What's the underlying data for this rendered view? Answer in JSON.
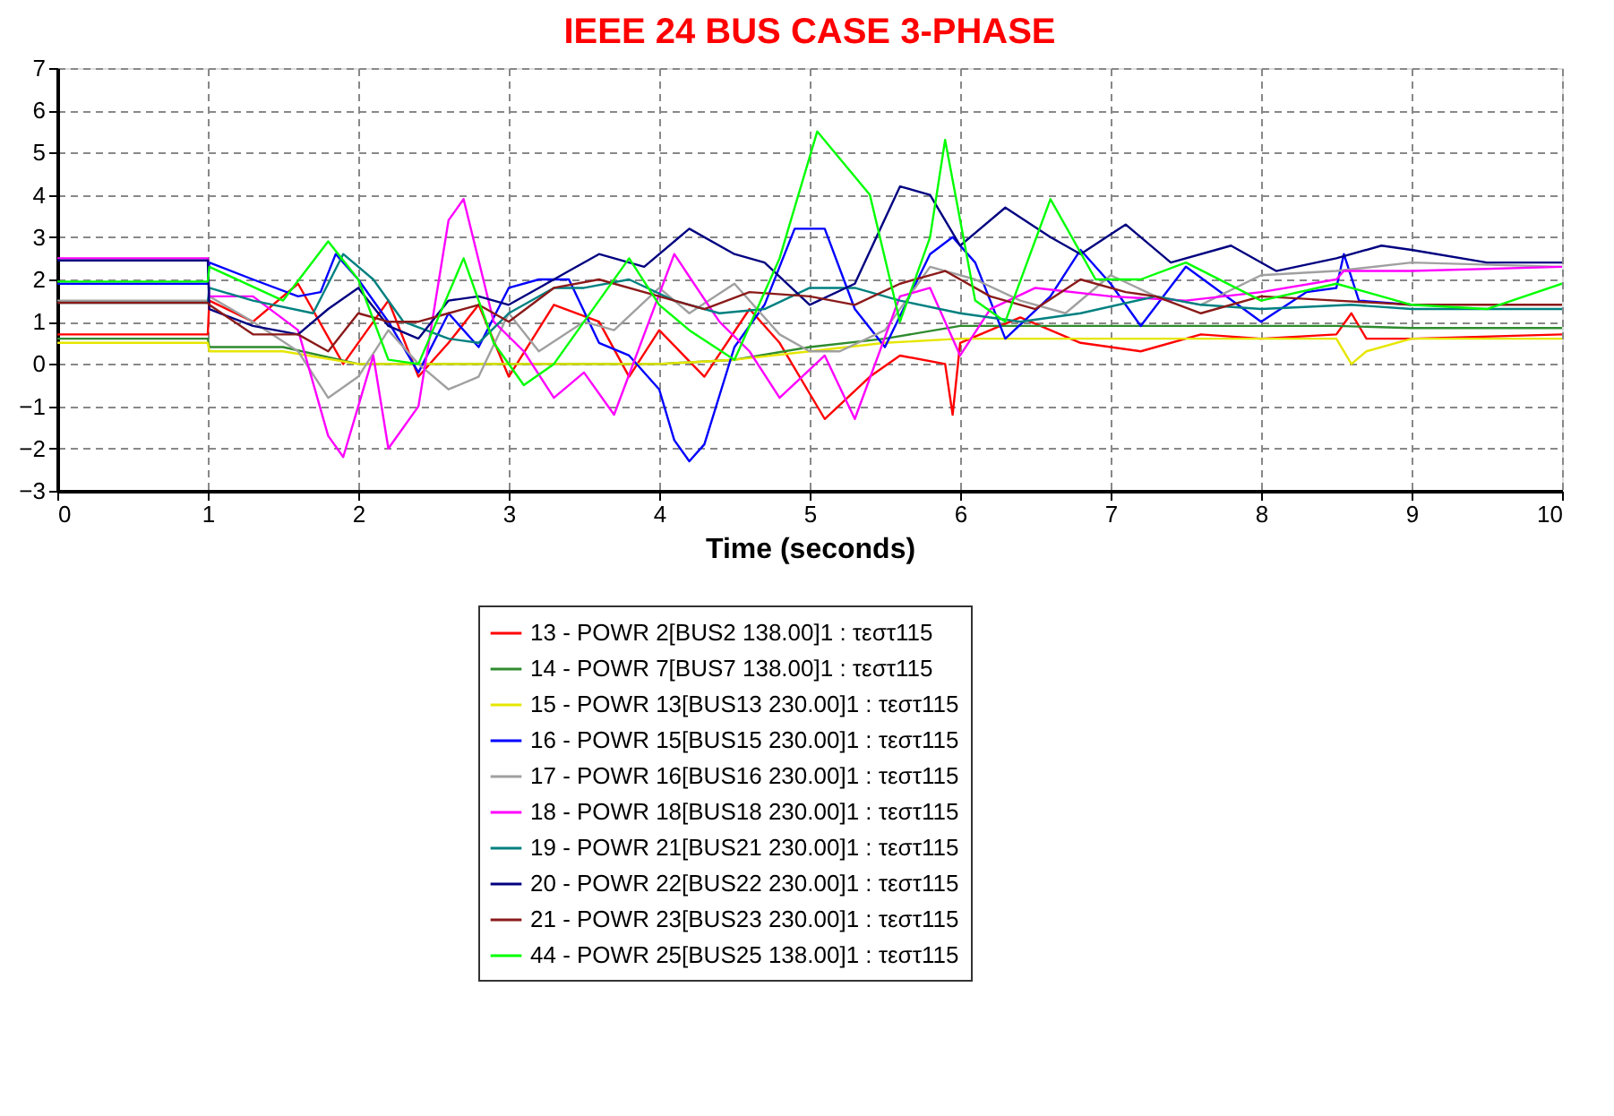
{
  "chart_data": {
    "type": "line",
    "title": "IEEE 24 BUS CASE 3-PHASE",
    "xlabel": "Time (seconds)",
    "xlim": [
      0,
      10
    ],
    "xticks": [
      0,
      1,
      2,
      3,
      4,
      5,
      6,
      7,
      8,
      9,
      10
    ],
    "ylim": [
      -3,
      7
    ],
    "yticks": [
      -3,
      -2,
      -1,
      0,
      1,
      2,
      3,
      4,
      5,
      6,
      7
    ],
    "grid": true,
    "legend": "bottom",
    "line_style": "solid",
    "marker": "none",
    "series": [
      {
        "name": "13 - POWR 2[BUS2 138.00]1 : τεστ115",
        "color": "#ff0000",
        "x": [
          0,
          1,
          1.01,
          1.3,
          1.6,
          1.9,
          2.2,
          2.4,
          2.6,
          2.8,
          3.0,
          3.3,
          3.6,
          3.8,
          4.0,
          4.3,
          4.6,
          4.8,
          5.1,
          5.4,
          5.6,
          5.9,
          5.95,
          6.0,
          6.4,
          6.8,
          7.2,
          7.6,
          8.0,
          8.5,
          8.6,
          8.7,
          9.0,
          10
        ],
        "values": [
          0.7,
          0.7,
          1.5,
          1.0,
          1.9,
          0.0,
          1.5,
          -0.3,
          0.5,
          1.4,
          -0.3,
          1.4,
          1.0,
          -0.3,
          0.8,
          -0.3,
          1.3,
          0.5,
          -1.3,
          -0.3,
          0.2,
          0.0,
          -1.2,
          0.5,
          1.1,
          0.5,
          0.3,
          0.7,
          0.6,
          0.7,
          1.2,
          0.6,
          0.6,
          0.7
        ]
      },
      {
        "name": "14 - POWR 7[BUS7 138.00]1 : τεστ115",
        "color": "#2e8b2e",
        "x": [
          0,
          1,
          1.01,
          1.5,
          2.0,
          3.0,
          4.0,
          4.5,
          5.0,
          5.5,
          6.0,
          7,
          8.5,
          9,
          10
        ],
        "values": [
          0.6,
          0.6,
          0.4,
          0.4,
          0.0,
          0.0,
          0.0,
          0.1,
          0.4,
          0.6,
          0.9,
          0.9,
          0.9,
          0.85,
          0.85
        ]
      },
      {
        "name": "15 - POWR 13[BUS13 230.00]1 : τεστ115",
        "color": "#e6e600",
        "x": [
          0,
          1,
          1.01,
          1.5,
          2.0,
          3.0,
          4.0,
          4.5,
          5.0,
          5.5,
          6.0,
          7,
          8.5,
          8.6,
          8.7,
          9,
          10
        ],
        "values": [
          0.5,
          0.5,
          0.3,
          0.3,
          0.0,
          0.0,
          0.0,
          0.1,
          0.3,
          0.5,
          0.6,
          0.6,
          0.6,
          0.0,
          0.3,
          0.6,
          0.6
        ]
      },
      {
        "name": "16 - POWR 15[BUS15 230.00]1 : τεστ115",
        "color": "#0000ff",
        "x": [
          0,
          1,
          1.01,
          1.3,
          1.6,
          1.75,
          1.85,
          2.0,
          2.2,
          2.4,
          2.6,
          2.8,
          3.0,
          3.2,
          3.4,
          3.6,
          3.8,
          4.0,
          4.1,
          4.2,
          4.3,
          4.5,
          4.7,
          4.9,
          5.1,
          5.3,
          5.5,
          5.8,
          5.95,
          6.1,
          6.3,
          6.6,
          6.8,
          7.0,
          7.2,
          7.5,
          8.0,
          8.3,
          8.5,
          8.55,
          8.65,
          9.0
        ],
        "values": [
          1.9,
          1.9,
          2.4,
          2.0,
          1.6,
          1.7,
          2.6,
          2.0,
          1.0,
          -0.2,
          1.2,
          0.4,
          1.8,
          2.0,
          2.0,
          0.5,
          0.2,
          -0.6,
          -1.8,
          -2.3,
          -1.9,
          0.4,
          1.4,
          3.2,
          3.2,
          1.3,
          0.4,
          2.6,
          3.0,
          2.4,
          0.6,
          1.6,
          2.7,
          1.9,
          0.9,
          2.3,
          1.0,
          1.7,
          1.8,
          2.6,
          1.5,
          1.4
        ]
      },
      {
        "name": "17 - POWR 16[BUS16 230.00]1 : τεστ115",
        "color": "#a0a0a0",
        "x": [
          0,
          1,
          1.01,
          1.3,
          1.6,
          1.8,
          2.0,
          2.2,
          2.4,
          2.6,
          2.8,
          3.0,
          3.2,
          3.5,
          3.7,
          4.0,
          4.2,
          4.5,
          4.8,
          5.0,
          5.2,
          5.5,
          5.8,
          6.1,
          6.4,
          6.7,
          7.0,
          7.3,
          7.6,
          8.0,
          8.5,
          9.0,
          10
        ],
        "values": [
          1.5,
          1.5,
          1.6,
          1.0,
          0.3,
          -0.8,
          -0.3,
          0.8,
          0.0,
          -0.6,
          -0.3,
          1.2,
          0.3,
          1.0,
          0.8,
          1.8,
          1.2,
          1.9,
          0.7,
          0.3,
          0.3,
          0.8,
          2.3,
          2.0,
          1.5,
          1.2,
          2.1,
          1.6,
          1.4,
          2.1,
          2.2,
          2.4,
          2.3
        ]
      },
      {
        "name": "18 - POWR 18[BUS18 230.00]1 : τεστ115",
        "color": "#ff00ff",
        "x": [
          0,
          1,
          1.01,
          1.3,
          1.6,
          1.8,
          1.9,
          2.0,
          2.1,
          2.2,
          2.4,
          2.6,
          2.7,
          2.9,
          3.1,
          3.3,
          3.5,
          3.7,
          3.9,
          4.1,
          4.4,
          4.6,
          4.8,
          5.1,
          5.3,
          5.6,
          5.8,
          6.0,
          6.2,
          6.5,
          7.0,
          7.5,
          8.0,
          8.5,
          8.55,
          9.0,
          10
        ],
        "values": [
          2.5,
          2.5,
          1.6,
          1.6,
          0.8,
          -1.7,
          -2.2,
          -1.0,
          0.2,
          -2.0,
          -1.0,
          3.4,
          3.9,
          1.0,
          0.3,
          -0.8,
          -0.2,
          -1.2,
          0.7,
          2.6,
          1.0,
          0.3,
          -0.8,
          0.2,
          -1.3,
          1.6,
          1.8,
          0.2,
          1.3,
          1.8,
          1.6,
          1.5,
          1.7,
          2.0,
          2.2,
          2.2,
          2.3
        ]
      },
      {
        "name": "19 - POWR 21[BUS21 230.00]1 : τεστ115",
        "color": "#008080",
        "x": [
          0,
          1,
          1.01,
          1.3,
          1.7,
          1.9,
          2.1,
          2.3,
          2.6,
          2.8,
          3.0,
          3.3,
          3.5,
          3.8,
          4.1,
          4.4,
          4.7,
          5.0,
          5.3,
          5.6,
          6.0,
          6.4,
          6.8,
          7.3,
          7.6,
          8.0,
          8.6,
          9.0,
          10
        ],
        "values": [
          1.45,
          1.45,
          1.8,
          1.5,
          1.2,
          2.6,
          2.0,
          1.0,
          0.6,
          0.5,
          1.2,
          1.8,
          1.8,
          2.0,
          1.5,
          1.2,
          1.3,
          1.8,
          1.8,
          1.5,
          1.2,
          1.0,
          1.2,
          1.6,
          1.4,
          1.3,
          1.4,
          1.3,
          1.3
        ]
      },
      {
        "name": "20 - POWR 22[BUS22 230.00]1 : τεστ115",
        "color": "#000080",
        "x": [
          0,
          1,
          1.01,
          1.3,
          1.6,
          1.8,
          2.0,
          2.2,
          2.4,
          2.6,
          2.8,
          3.0,
          3.2,
          3.4,
          3.6,
          3.9,
          4.2,
          4.5,
          4.7,
          5.0,
          5.3,
          5.6,
          5.8,
          6.0,
          6.3,
          6.6,
          6.8,
          7.1,
          7.4,
          7.8,
          8.1,
          8.5,
          8.8,
          9.0,
          9.5,
          10
        ],
        "values": [
          2.45,
          2.45,
          1.3,
          0.9,
          0.7,
          1.3,
          1.8,
          0.9,
          0.6,
          1.5,
          1.6,
          1.4,
          1.8,
          2.2,
          2.6,
          2.3,
          3.2,
          2.6,
          2.4,
          1.4,
          1.9,
          4.2,
          4.0,
          2.8,
          3.7,
          3.0,
          2.6,
          3.3,
          2.4,
          2.8,
          2.2,
          2.5,
          2.8,
          2.7,
          2.4,
          2.4
        ]
      },
      {
        "name": "21 - POWR 23[BUS23 230.00]1 : τεστ115",
        "color": "#8b1a1a",
        "x": [
          0,
          1,
          1.01,
          1.3,
          1.6,
          1.8,
          2.0,
          2.2,
          2.4,
          2.6,
          2.8,
          3.0,
          3.3,
          3.6,
          4.0,
          4.3,
          4.6,
          5.0,
          5.3,
          5.6,
          5.9,
          6.2,
          6.5,
          6.8,
          7.1,
          7.3,
          7.6,
          8.0,
          8.5,
          9.0,
          10
        ],
        "values": [
          1.45,
          1.45,
          1.4,
          0.7,
          0.7,
          0.3,
          1.2,
          1.0,
          1.0,
          1.2,
          1.4,
          1.0,
          1.8,
          2.0,
          1.6,
          1.3,
          1.7,
          1.6,
          1.4,
          1.9,
          2.2,
          1.6,
          1.3,
          2.0,
          1.7,
          1.6,
          1.2,
          1.6,
          1.5,
          1.4,
          1.4
        ]
      },
      {
        "name": "44 - POWR 25[BUS25 138.00]1 : τεστ115",
        "color": "#00ff00",
        "x": [
          0,
          1,
          1.01,
          1.5,
          1.8,
          2.0,
          2.2,
          2.4,
          2.7,
          2.9,
          3.1,
          3.3,
          3.6,
          3.8,
          4.0,
          4.2,
          4.5,
          4.8,
          5.05,
          5.4,
          5.6,
          5.8,
          5.9,
          6.1,
          6.3,
          6.6,
          6.9,
          7.2,
          7.5,
          8.0,
          8.5,
          8.7,
          9.0,
          9.5,
          10
        ],
        "values": [
          1.95,
          1.95,
          2.3,
          1.5,
          2.9,
          2.0,
          0.1,
          0.0,
          2.5,
          0.5,
          -0.5,
          0.0,
          1.5,
          2.5,
          1.4,
          0.8,
          0.1,
          2.5,
          5.5,
          4.0,
          1.0,
          3.0,
          5.3,
          1.5,
          1.0,
          3.9,
          2.0,
          2.0,
          2.4,
          1.5,
          1.9,
          1.7,
          1.4,
          1.3,
          1.9
        ]
      }
    ]
  }
}
